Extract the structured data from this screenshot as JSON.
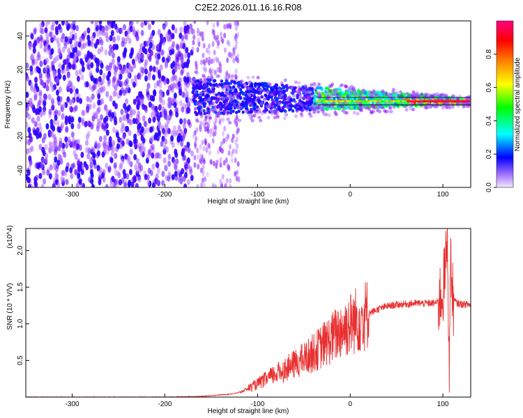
{
  "title": "C2E2.2026.011.16.16.R08",
  "chart_data": [
    {
      "type": "heatmap",
      "title": "C2E2.2026.011.16.16.R08",
      "xlabel": "Height of straight line (km)",
      "ylabel": "Frequency (Hz)",
      "xlim": [
        -350,
        130
      ],
      "ylim": [
        -50,
        49
      ],
      "x_ticks": [
        -300,
        -200,
        -100,
        0,
        100
      ],
      "x_tick_labels": [
        "-300",
        "-200",
        "-100",
        "0",
        "100"
      ],
      "y_ticks": [
        -40,
        -20,
        0,
        20,
        40
      ],
      "y_tick_labels": [
        "-40",
        "-20",
        "0",
        "20",
        "40"
      ],
      "colorbar": {
        "label": "Normalized spectral amplitude",
        "range": [
          0,
          1
        ],
        "ticks": [
          0.0,
          0.2,
          0.4,
          0.6,
          0.8
        ],
        "tick_labels": [
          "0.0",
          "0.2",
          "0.4",
          "0.6",
          "0.8"
        ],
        "colormap": [
          "#f2e8ff",
          "#7a00ff",
          "#0000ff",
          "#00ffff",
          "#00ff00",
          "#ffff00",
          "#ff7f00",
          "#ff0000",
          "#ff0080"
        ]
      },
      "regions": [
        {
          "x_range": [
            -350,
            -170
          ],
          "f_range": [
            -50,
            49
          ],
          "amplitude": 0.15,
          "description_values": "broadband noise"
        },
        {
          "x_range": [
            -170,
            -120
          ],
          "f_range": [
            -50,
            49
          ],
          "amplitude": 0.08
        },
        {
          "x_range": [
            -170,
            -100
          ],
          "f_range": [
            -5,
            18
          ],
          "amplitude": 0.3
        },
        {
          "x_range": [
            -100,
            -40
          ],
          "f_range": [
            -8,
            10
          ],
          "amplitude": 0.35
        },
        {
          "x_range": [
            -40,
            130
          ],
          "f_range": [
            -2,
            4
          ],
          "amplitude": 0.55
        }
      ],
      "grid": false
    },
    {
      "type": "line",
      "title": "",
      "xlabel": "Height of straight line (km)",
      "ylabel": "SNR (10 * V/V)",
      "y_multiplier": "(x10^4)",
      "xlim": [
        -350,
        130
      ],
      "ylim": [
        0,
        2.3
      ],
      "x_ticks": [
        -300,
        -200,
        -100,
        0,
        100
      ],
      "x_tick_labels": [
        "-300",
        "-200",
        "-100",
        "0",
        "100"
      ],
      "y_ticks": [
        0.5,
        1.0,
        1.5,
        2.0
      ],
      "y_tick_labels": [
        "0.5",
        "1.0",
        "1.5",
        "2.0"
      ],
      "series": [
        {
          "color": "#e83030",
          "x": [
            -350,
            -300,
            -250,
            -200,
            -160,
            -150,
            -130,
            -120,
            -110,
            -100,
            -90,
            -80,
            -70,
            -60,
            -50,
            -40,
            -30,
            -20,
            -10,
            0,
            10,
            20,
            30,
            40,
            50,
            60,
            70,
            80,
            90,
            95,
            100,
            103,
            105,
            107,
            108,
            110,
            115,
            120,
            130
          ],
          "y": [
            0.0,
            0.0,
            0.0,
            0.0,
            0.01,
            0.02,
            0.04,
            0.06,
            0.12,
            0.18,
            0.25,
            0.32,
            0.38,
            0.45,
            0.52,
            0.6,
            0.7,
            0.8,
            0.92,
            1.0,
            1.08,
            1.14,
            1.2,
            1.24,
            1.26,
            1.27,
            1.28,
            1.28,
            1.28,
            1.3,
            1.45,
            1.75,
            2.3,
            0.1,
            2.1,
            1.35,
            1.28,
            1.27,
            1.26
          ]
        }
      ],
      "grid": false
    }
  ]
}
